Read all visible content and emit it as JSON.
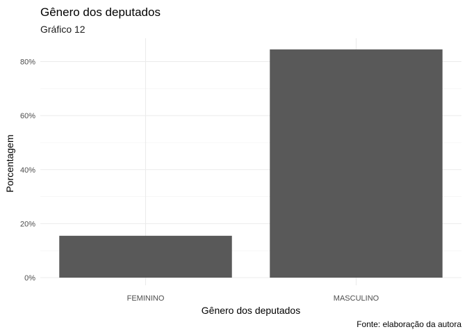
{
  "chart_data": {
    "type": "bar",
    "title": "Gênero dos deputados",
    "subtitle": "Gráfico 12",
    "xlabel": "Gênero dos deputados",
    "ylabel": "Porcentagem",
    "caption": "Fonte: elaboração da autora",
    "categories": [
      "FEMININO",
      "MASCULINO"
    ],
    "values": [
      15.5,
      84.5
    ],
    "y_unit": "%",
    "ylim": [
      0,
      88
    ],
    "yticks": [
      0,
      20,
      40,
      60,
      80
    ],
    "ytick_labels": [
      "0%",
      "20%",
      "40%",
      "60%",
      "80%"
    ],
    "grid": true,
    "bar_color": "#595959"
  }
}
